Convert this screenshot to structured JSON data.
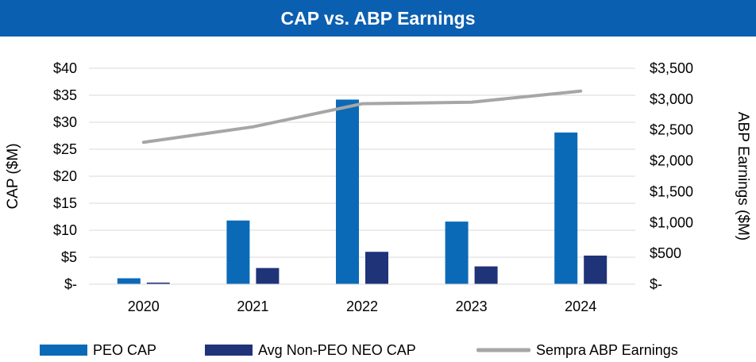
{
  "chart_data": {
    "type": "bar",
    "title": "CAP vs. ABP Earnings",
    "categories": [
      "2020",
      "2021",
      "2022",
      "2023",
      "2024"
    ],
    "series": [
      {
        "name": "PEO CAP",
        "kind": "bar",
        "axis": "left",
        "color": "#0b6ab7",
        "values": [
          1.1,
          11.8,
          34.2,
          11.6,
          28.1
        ]
      },
      {
        "name": "Avg Non-PEO NEO CAP",
        "kind": "bar",
        "axis": "left",
        "color": "#1f3379",
        "values": [
          0.3,
          3.0,
          6.0,
          3.3,
          5.3
        ]
      },
      {
        "name": "Sempra ABP Earnings",
        "kind": "line",
        "axis": "right",
        "color": "#a6a6a6",
        "values": [
          2300,
          2550,
          2925,
          2950,
          3130
        ]
      }
    ],
    "ylabel": "CAP ($M)",
    "ylabel_right": "ABP Earnings ($M)",
    "ylim": [
      0,
      40
    ],
    "ylim_right": [
      0,
      3500
    ],
    "yticks": [
      "$-",
      "$5",
      "$10",
      "$15",
      "$20",
      "$25",
      "$30",
      "$35",
      "$40"
    ],
    "yticks_right": [
      "$-",
      "$500",
      "$1,000",
      "$1,500",
      "$2,000",
      "$2,500",
      "$3,000",
      "$3,500"
    ],
    "grid": true,
    "legend_position": "bottom"
  }
}
